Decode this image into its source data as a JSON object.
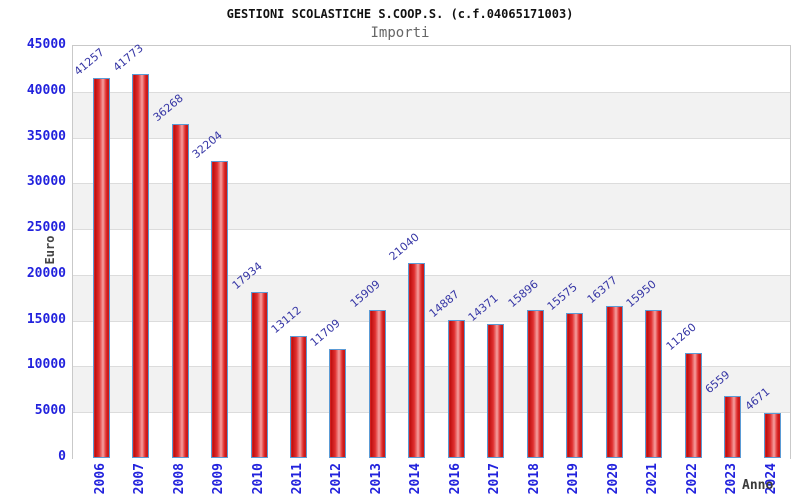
{
  "header": {
    "title": "GESTIONI SCOLASTICHE S.COOP.S. (c.f.04065171003)",
    "subtitle": "Importi"
  },
  "chart_data": {
    "type": "bar",
    "title": "GESTIONI SCOLASTICHE S.COOP.S. (c.f.04065171003)",
    "subtitle": "Importi",
    "xlabel": "Anno",
    "ylabel": "Euro",
    "categories": [
      "2006",
      "2007",
      "2008",
      "2009",
      "2010",
      "2011",
      "2012",
      "2013",
      "2014",
      "2016",
      "2017",
      "2018",
      "2019",
      "2020",
      "2021",
      "2022",
      "2023",
      "2024"
    ],
    "values": [
      41257,
      41773,
      36268,
      32204,
      17934,
      13112,
      11709,
      15909,
      21040,
      14887,
      14371,
      15896,
      15575,
      16377,
      15950,
      11260,
      6559,
      4671
    ],
    "ylim": [
      0,
      45000
    ],
    "ytick_step": 5000,
    "ytick_labels": [
      "0",
      "5000",
      "10000",
      "15000",
      "20000",
      "25000",
      "30000",
      "35000",
      "40000",
      "45000"
    ],
    "grid": "horizontal",
    "legend": "none",
    "plot_background": "alternating horizontal bands"
  },
  "colors": {
    "tick_label_blue": "#2222dd",
    "value_label_blue": "#3535a5",
    "bar_border_blue": "#5b9bd5",
    "bar_red_dark": "#c01010",
    "bar_red_mid": "#e03030",
    "bar_red_light": "#f5a0a0",
    "band_gray": "#f2f2f2",
    "grid_line": "#dcdcdc",
    "plot_border": "#c9c9c9",
    "title_color": "#111111",
    "subtitle_color": "#666666",
    "axis_title_color": "#3a3a3a"
  }
}
